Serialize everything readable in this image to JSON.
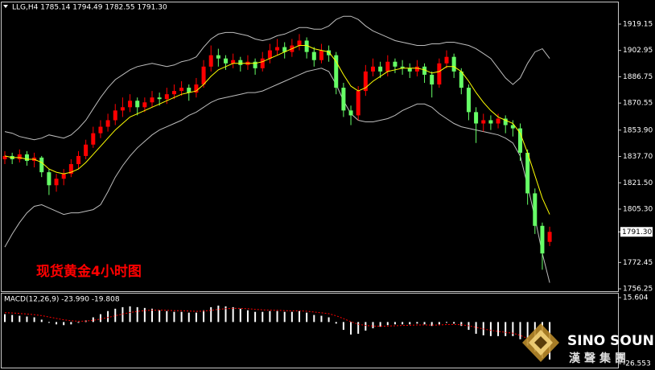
{
  "chart_data": [
    {
      "type": "candlestick",
      "header": "LLG,H4 1785.14 1794.49 1782.55 1791.30",
      "title": "现货黄金4小时图",
      "open": [
        1836,
        1838,
        1836,
        1839,
        1835,
        1837,
        1828,
        1820,
        1824,
        1827,
        1833,
        1838,
        1845,
        1852,
        1856,
        1860,
        1866,
        1868,
        1872,
        1868,
        1871,
        1874,
        1873,
        1876,
        1878,
        1880,
        1877,
        1882,
        1893,
        1900,
        1898,
        1895,
        1897,
        1894,
        1896,
        1892,
        1898,
        1903,
        1905,
        1902,
        1906,
        1909,
        1902,
        1897,
        1903,
        1900,
        1880,
        1866,
        1863,
        1878,
        1890,
        1893,
        1890,
        1896,
        1893,
        1892,
        1890,
        1893,
        1888,
        1882,
        1895,
        1899,
        1890,
        1880,
        1865,
        1858,
        1860,
        1858,
        1861,
        1857,
        1855,
        1840,
        1815,
        1795,
        1785.14
      ],
      "high": [
        1841,
        1840,
        1842,
        1841,
        1840,
        1838,
        1830,
        1827,
        1830,
        1836,
        1841,
        1848,
        1856,
        1860,
        1864,
        1870,
        1874,
        1876,
        1874,
        1874,
        1878,
        1877,
        1880,
        1882,
        1884,
        1882,
        1886,
        1897,
        1906,
        1904,
        1900,
        1901,
        1899,
        1900,
        1898,
        1902,
        1907,
        1910,
        1908,
        1910,
        1913,
        1911,
        1905,
        1907,
        1906,
        1902,
        1883,
        1869,
        1881,
        1894,
        1898,
        1896,
        1900,
        1898,
        1897,
        1895,
        1897,
        1895,
        1890,
        1898,
        1903,
        1901,
        1892,
        1882,
        1868,
        1864,
        1863,
        1864,
        1863,
        1860,
        1858,
        1842,
        1818,
        1797,
        1794.49
      ],
      "low": [
        1833,
        1833,
        1834,
        1832,
        1831,
        1825,
        1814,
        1816,
        1820,
        1825,
        1830,
        1836,
        1843,
        1849,
        1853,
        1857,
        1862,
        1865,
        1863,
        1865,
        1868,
        1869,
        1870,
        1873,
        1875,
        1872,
        1874,
        1880,
        1890,
        1893,
        1891,
        1892,
        1890,
        1891,
        1888,
        1890,
        1895,
        1900,
        1898,
        1899,
        1903,
        1898,
        1893,
        1895,
        1896,
        1876,
        1862,
        1857,
        1860,
        1875,
        1887,
        1886,
        1887,
        1889,
        1888,
        1886,
        1887,
        1883,
        1874,
        1880,
        1892,
        1886,
        1876,
        1860,
        1846,
        1853,
        1854,
        1855,
        1852,
        1850,
        1835,
        1808,
        1790,
        1768,
        1782.55
      ],
      "close": [
        1838,
        1836,
        1839,
        1835,
        1837,
        1828,
        1820,
        1824,
        1827,
        1833,
        1838,
        1845,
        1852,
        1856,
        1860,
        1866,
        1868,
        1872,
        1868,
        1871,
        1874,
        1873,
        1876,
        1878,
        1880,
        1877,
        1882,
        1893,
        1900,
        1898,
        1895,
        1897,
        1894,
        1896,
        1892,
        1898,
        1903,
        1905,
        1902,
        1906,
        1909,
        1902,
        1897,
        1903,
        1900,
        1880,
        1866,
        1863,
        1878,
        1890,
        1893,
        1890,
        1896,
        1893,
        1892,
        1890,
        1893,
        1888,
        1882,
        1895,
        1899,
        1890,
        1880,
        1865,
        1858,
        1860,
        1858,
        1861,
        1857,
        1855,
        1840,
        1815,
        1795,
        1778,
        1791.3
      ],
      "bollinger_upper": [
        1853,
        1852,
        1850,
        1849,
        1848,
        1849,
        1851,
        1850,
        1849,
        1851,
        1855,
        1860,
        1867,
        1874,
        1880,
        1885,
        1888,
        1891,
        1893,
        1894,
        1895,
        1894,
        1893,
        1894,
        1896,
        1897,
        1899,
        1905,
        1910,
        1913,
        1914,
        1914,
        1913,
        1912,
        1910,
        1909,
        1910,
        1912,
        1913,
        1915,
        1917,
        1917,
        1916,
        1916,
        1918,
        1922,
        1924,
        1924,
        1922,
        1918,
        1915,
        1913,
        1911,
        1909,
        1908,
        1907,
        1906,
        1906,
        1907,
        1907,
        1908,
        1908,
        1907,
        1906,
        1904,
        1901,
        1898,
        1892,
        1886,
        1882,
        1886,
        1895,
        1902,
        1904,
        1898
      ],
      "bollinger_lower": [
        1782,
        1790,
        1797,
        1803,
        1807,
        1808,
        1806,
        1804,
        1802,
        1803,
        1803,
        1804,
        1805,
        1808,
        1816,
        1825,
        1832,
        1838,
        1843,
        1847,
        1851,
        1854,
        1856,
        1858,
        1860,
        1863,
        1865,
        1868,
        1871,
        1873,
        1874,
        1875,
        1876,
        1877,
        1877,
        1878,
        1880,
        1882,
        1884,
        1886,
        1888,
        1890,
        1891,
        1892,
        1890,
        1882,
        1872,
        1864,
        1860,
        1859,
        1859,
        1860,
        1861,
        1863,
        1866,
        1868,
        1870,
        1870,
        1868,
        1864,
        1861,
        1858,
        1856,
        1855,
        1854,
        1853,
        1852,
        1851,
        1849,
        1846,
        1838,
        1820,
        1800,
        1778,
        1760
      ],
      "ma": [
        1838,
        1837,
        1837,
        1836,
        1836,
        1834,
        1830,
        1828,
        1827,
        1828,
        1830,
        1834,
        1839,
        1844,
        1849,
        1854,
        1858,
        1862,
        1864,
        1866,
        1868,
        1870,
        1872,
        1874,
        1876,
        1877,
        1878,
        1882,
        1887,
        1891,
        1893,
        1895,
        1895,
        1895,
        1895,
        1896,
        1898,
        1900,
        1902,
        1904,
        1906,
        1906,
        1904,
        1903,
        1902,
        1896,
        1888,
        1881,
        1878,
        1880,
        1884,
        1887,
        1890,
        1891,
        1892,
        1892,
        1892,
        1891,
        1889,
        1890,
        1893,
        1893,
        1890,
        1884,
        1877,
        1871,
        1866,
        1862,
        1860,
        1858,
        1852,
        1840,
        1826,
        1812,
        1802
      ],
      "up_color": "#ff0000",
      "down_color": "#66ff66",
      "band_color": "#bdbdbd",
      "ma_color": "#ffff00",
      "title_color": "#ff0000",
      "ylim": [
        1754.8,
        1933
      ],
      "yticks": [
        1919.15,
        1902.95,
        1886.75,
        1870.55,
        {
          "value": 1853.9,
          "label": "1853.90"
        },
        {
          "value": 1837.7,
          "label": "1837.70"
        },
        {
          "value": 1821.5,
          "label": "1821.50"
        },
        {
          "value": 1805.3,
          "label": "1805.30"
        },
        1772.45,
        1756.25
      ],
      "current_price": {
        "value": 1791.3,
        "label": "1791.30"
      },
      "grid": false
    },
    {
      "type": "macd",
      "label": "MACD(12,26,9) -23.990 -19.808",
      "histogram": [
        5,
        4.5,
        4,
        3.5,
        3,
        1.5,
        -0.5,
        -1.5,
        -2,
        -1.5,
        -0.5,
        1,
        3,
        5,
        7,
        8.5,
        9.5,
        10,
        9.5,
        9,
        8.5,
        7.5,
        7,
        6.5,
        6.5,
        6,
        6,
        7.5,
        9.5,
        10.5,
        10,
        9.5,
        8.5,
        7.5,
        6.5,
        6.5,
        7,
        7,
        6.5,
        6.5,
        7,
        6,
        4.5,
        4,
        3,
        -1,
        -5,
        -8,
        -7.5,
        -5.5,
        -4,
        -3,
        -2,
        -1.5,
        -1.5,
        -1.5,
        -1,
        -1.5,
        -2.5,
        -1.5,
        -0.5,
        -1,
        -2.5,
        -5,
        -7.5,
        -8.5,
        -9,
        -9,
        -9,
        -9,
        -11,
        -15,
        -19,
        -23,
        -23.99
      ],
      "signal": [
        6,
        5.8,
        5.5,
        5.1,
        4.7,
        4.1,
        3.2,
        2.3,
        1.4,
        0.8,
        0.5,
        0.6,
        1.1,
        1.9,
        2.9,
        4,
        5.1,
        6.1,
        6.8,
        7.3,
        7.6,
        7.6,
        7.5,
        7.3,
        7.2,
        7,
        6.8,
        7,
        7.5,
        8.1,
        8.5,
        8.7,
        8.7,
        8.5,
        8.1,
        7.8,
        7.6,
        7.5,
        7.3,
        7.1,
        7.1,
        6.9,
        6.4,
        5.9,
        5.3,
        4,
        2.2,
        0.2,
        -1.4,
        -2.2,
        -2.6,
        -2.7,
        -2.6,
        -2.4,
        -2.2,
        -2.1,
        -1.9,
        -1.8,
        -2,
        -1.9,
        -1.6,
        -1.5,
        -1.7,
        -2.4,
        -3.4,
        -4.4,
        -5.3,
        -6,
        -6.6,
        -7.1,
        -8.5,
        -10.5,
        -13.5,
        -17,
        -19.808
      ],
      "histogram_color": "#ffffff",
      "signal_color": "#ff0000",
      "ylim": [
        -26.553,
        15.604
      ],
      "yticks": [
        15.604,
        -26.553
      ]
    }
  ],
  "watermark": {
    "brand": "SINO SOUND",
    "subtitle": "漢聲集團"
  }
}
